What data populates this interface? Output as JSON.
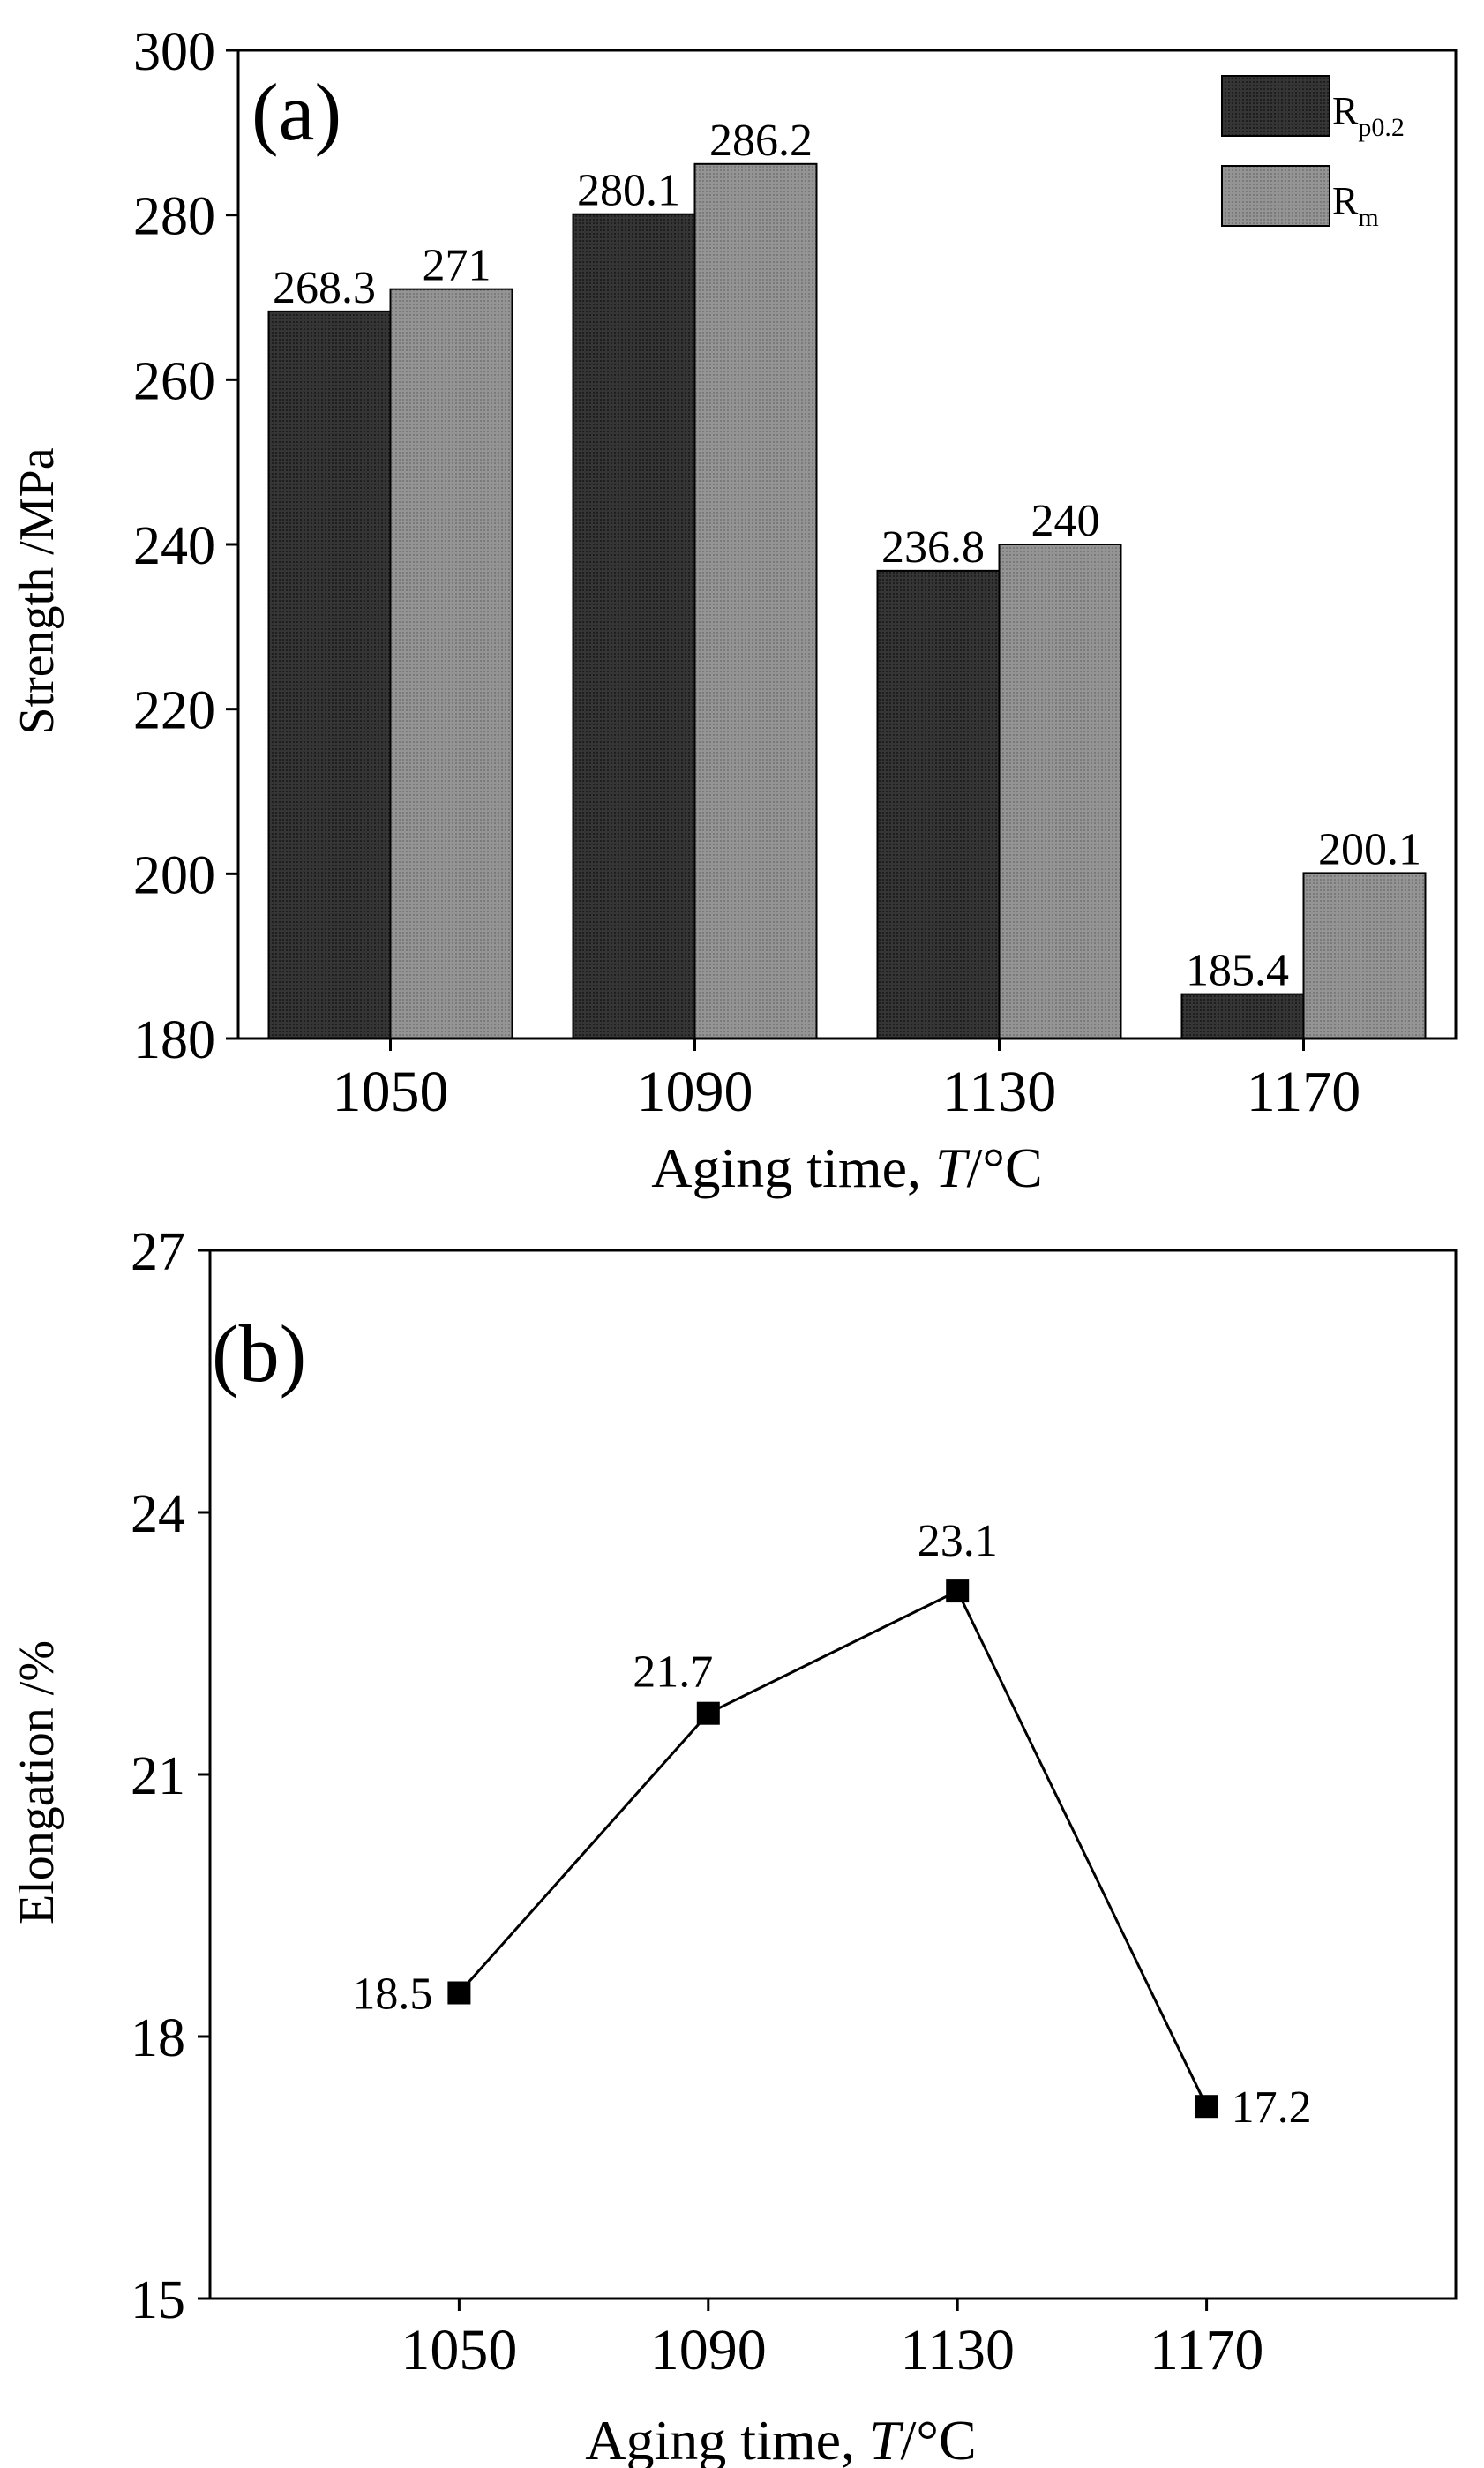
{
  "chart_data": [
    {
      "type": "bar",
      "panel_label": "(a)",
      "categories": [
        "1050",
        "1090",
        "1130",
        "1170"
      ],
      "series": [
        {
          "name": "Rp0.2",
          "legend_main": "R",
          "legend_sub": "p0.2",
          "color": "#2e2e2e",
          "values": [
            268.3,
            280.1,
            236.8,
            185.4
          ],
          "labels": [
            "268.3",
            "280.1",
            "236.8",
            "185.4"
          ]
        },
        {
          "name": "Rm",
          "legend_main": "R",
          "legend_sub": "m",
          "color": "#8c8c8c",
          "values": [
            271,
            286.2,
            240,
            200.1
          ],
          "labels": [
            "271",
            "286.2",
            "240",
            "200.1"
          ]
        }
      ],
      "ylim": [
        180,
        300
      ],
      "yticks": [
        180,
        200,
        220,
        240,
        260,
        280,
        300
      ],
      "ylabel": "Strength /MPa",
      "xlabel_prefix": "Aging time, ",
      "xlabel_var": "T",
      "xlabel_suffix": "/°C",
      "legend_position": "top-right",
      "grid": false
    },
    {
      "type": "line",
      "panel_label": "(b)",
      "categories": [
        "1050",
        "1090",
        "1130",
        "1170"
      ],
      "x": [
        1050,
        1090,
        1130,
        1170
      ],
      "values": [
        18.5,
        21.7,
        23.1,
        17.2
      ],
      "labels": [
        "18.5",
        "21.7",
        "23.1",
        "17.2"
      ],
      "xlim": [
        1010,
        1210
      ],
      "ylim": [
        15,
        27
      ],
      "yticks": [
        15,
        18,
        21,
        24,
        27
      ],
      "ylabel": "Elongation /%",
      "xlabel_prefix": "Aging time, ",
      "xlabel_var": "T",
      "xlabel_suffix": "/°C",
      "marker": "square",
      "color": "#000000",
      "grid": false
    }
  ]
}
